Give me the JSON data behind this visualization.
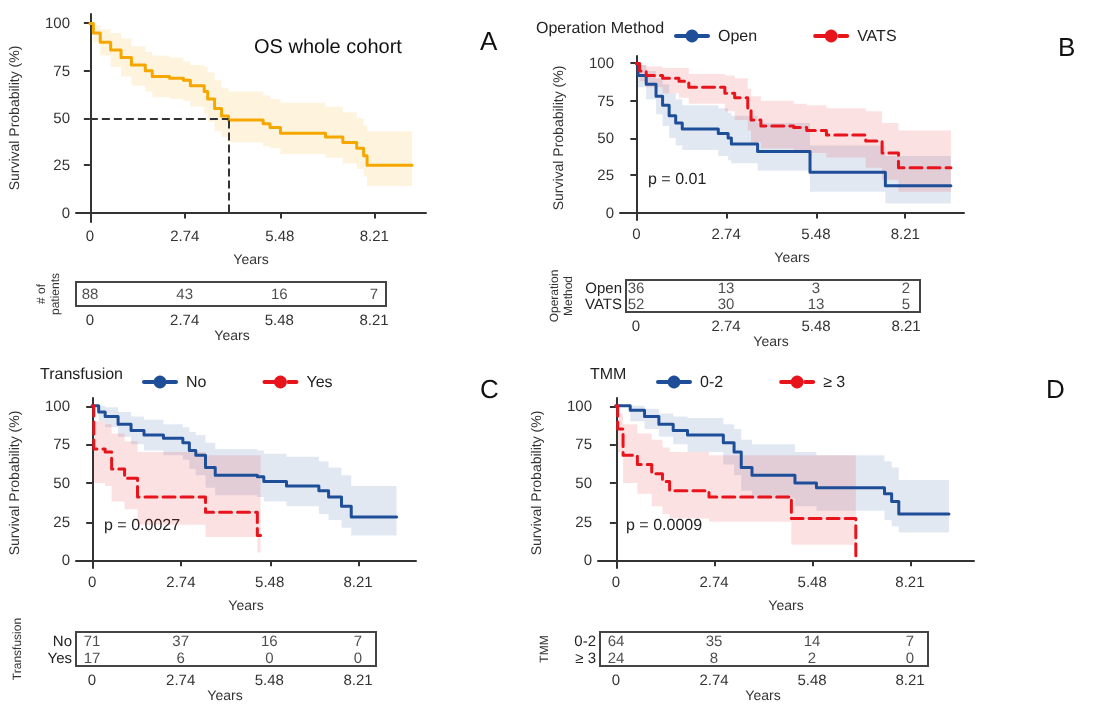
{
  "chart_data": [
    {
      "type": "step",
      "title": "OS whole cohort",
      "xlabel": "Years",
      "ylabel": "Survival Probability (%)",
      "annotations": [
        "A"
      ],
      "xlim": [
        -0.4,
        9.7
      ],
      "ylim": [
        -5,
        105
      ],
      "xticks": [
        0,
        2.74,
        5.48,
        8.21
      ],
      "yticks": [
        0,
        25,
        50,
        75,
        100
      ],
      "series": [
        {
          "color": "#f5a700",
          "x": [
            0,
            0.1,
            0.3,
            0.6,
            0.9,
            1.2,
            1.6,
            1.8,
            2.3,
            2.7,
            2.9,
            3.3,
            3.4,
            3.6,
            3.8,
            4.0,
            5.0,
            5.2,
            5.5,
            6.8,
            7.3,
            7.7,
            7.9,
            8.0,
            9.3
          ],
          "values": [
            100,
            95,
            90,
            86,
            82,
            78,
            75,
            72,
            71,
            70,
            67,
            64,
            60,
            55,
            51,
            49,
            47,
            45,
            42,
            40,
            37,
            34,
            30,
            25,
            25
          ],
          "upper": [
            100,
            99,
            97,
            95,
            92,
            88,
            85,
            83,
            82,
            80,
            78,
            77,
            74,
            70,
            66,
            64,
            62,
            60,
            58,
            56,
            53,
            50,
            46,
            43,
            43
          ],
          "lower": [
            100,
            90,
            83,
            77,
            72,
            67,
            64,
            61,
            60,
            59,
            56,
            52,
            48,
            43,
            40,
            37,
            35,
            34,
            31,
            29,
            26,
            23,
            19,
            14,
            14
          ]
        }
      ],
      "ref_lines": [
        {
          "axis": "y",
          "value": 50,
          "line_style": "dashed"
        },
        {
          "axis": "x",
          "value": 4.0,
          "line_style": "dashed"
        }
      ]
    },
    {
      "type": "heatmap",
      "xlabel": "Years",
      "categories": [
        "0",
        "2.74",
        "5.48",
        "8.21"
      ],
      "y_categories": [
        "# of patients"
      ],
      "data_labels": true,
      "cells": [
        [
          88,
          43,
          16,
          7
        ]
      ]
    },
    {
      "type": "step",
      "xlabel": "Years",
      "ylabel": "Survival Probability (%)",
      "legend_title": "Operation Method",
      "legend": "top",
      "annotations": [
        "B",
        "p = 0.01"
      ],
      "xlim": [
        -0.5,
        10
      ],
      "ylim": [
        -5,
        105
      ],
      "xticks": [
        0,
        2.74,
        5.48,
        8.21
      ],
      "yticks": [
        0,
        25,
        50,
        75,
        100
      ],
      "series": [
        {
          "name": "Open",
          "color": "#1f4e99",
          "line_style": "solid",
          "x": [
            0,
            0.05,
            0.3,
            0.6,
            0.8,
            1.0,
            1.2,
            1.4,
            2.5,
            2.8,
            2.9,
            3.7,
            5.3,
            7.6,
            9.6
          ],
          "values": [
            100,
            92,
            86,
            78,
            72,
            65,
            60,
            56,
            53,
            50,
            46,
            41,
            27,
            18,
            18
          ],
          "upper": [
            100,
            99,
            95,
            90,
            86,
            80,
            76,
            72,
            70,
            67,
            65,
            60,
            45,
            38,
            38
          ],
          "lower": [
            100,
            84,
            76,
            66,
            58,
            50,
            45,
            42,
            38,
            35,
            33,
            28,
            14,
            6,
            6
          ]
        },
        {
          "name": "VATS",
          "color": "#e8141c",
          "line_style": "dashed",
          "x": [
            0,
            0.1,
            0.3,
            0.8,
            1.3,
            1.6,
            2.7,
            3.0,
            3.4,
            3.5,
            3.8,
            4.8,
            5.2,
            5.8,
            7.0,
            7.5,
            8.0,
            9.6
          ],
          "values": [
            100,
            95,
            92,
            90,
            88,
            84,
            80,
            77,
            70,
            62,
            58,
            57,
            55,
            52,
            48,
            40,
            30,
            30
          ],
          "upper": [
            100,
            99,
            98,
            97,
            97,
            93,
            92,
            90,
            83,
            78,
            75,
            73,
            72,
            70,
            68,
            60,
            55,
            55
          ],
          "lower": [
            100,
            88,
            84,
            80,
            77,
            73,
            68,
            62,
            55,
            47,
            43,
            42,
            40,
            37,
            30,
            22,
            14,
            14
          ]
        }
      ]
    },
    {
      "type": "heatmap",
      "xlabel": "Years",
      "ylabel": "Operation Method",
      "categories": [
        "0",
        "2.74",
        "5.48",
        "8.21"
      ],
      "y_categories": [
        "Open",
        "VATS"
      ],
      "data_labels": true,
      "cells": [
        [
          36,
          13,
          3,
          2
        ],
        [
          52,
          30,
          13,
          5
        ]
      ]
    },
    {
      "type": "step",
      "xlabel": "Years",
      "ylabel": "Survival Probability (%)",
      "legend_title": "Transfusion",
      "legend": "top",
      "annotations": [
        "C",
        "p = 0.0027"
      ],
      "xlim": [
        -0.5,
        10
      ],
      "ylim": [
        -5,
        105
      ],
      "xticks": [
        0,
        2.74,
        5.48,
        8.21
      ],
      "yticks": [
        0,
        25,
        50,
        75,
        100
      ],
      "series": [
        {
          "name": "No",
          "color": "#1f4e99",
          "line_style": "solid",
          "x": [
            0,
            0.2,
            0.4,
            0.8,
            1.2,
            1.6,
            2.2,
            2.8,
            3.0,
            3.2,
            3.5,
            3.8,
            5.1,
            5.3,
            6.0,
            7.0,
            7.3,
            7.7,
            8.0,
            9.4
          ],
          "values": [
            100,
            96,
            93,
            88,
            84,
            81,
            79,
            76,
            71,
            68,
            60,
            55,
            54,
            51,
            48,
            45,
            41,
            35,
            28,
            28
          ],
          "upper": [
            100,
            100,
            99,
            96,
            93,
            91,
            88,
            86,
            83,
            81,
            76,
            72,
            71,
            69,
            67,
            64,
            60,
            55,
            48,
            48
          ],
          "lower": [
            100,
            90,
            86,
            80,
            75,
            71,
            68,
            65,
            59,
            55,
            47,
            42,
            41,
            38,
            35,
            30,
            26,
            21,
            16,
            16
          ]
        },
        {
          "name": "Yes",
          "color": "#e8141c",
          "line_style": "dashed",
          "x": [
            0,
            0.05,
            0.4,
            0.6,
            1.0,
            1.4,
            3.5,
            5.1,
            5.2
          ],
          "values": [
            100,
            72,
            70,
            59,
            53,
            41,
            31,
            16,
            16
          ],
          "upper": [
            100,
            90,
            88,
            82,
            77,
            70,
            68,
            68,
            68
          ],
          "lower": [
            100,
            50,
            48,
            38,
            33,
            23,
            15,
            5,
            5
          ]
        }
      ]
    },
    {
      "type": "heatmap",
      "xlabel": "Years",
      "ylabel": "Transfusion",
      "categories": [
        "0",
        "2.74",
        "5.48",
        "8.21"
      ],
      "y_categories": [
        "No",
        "Yes"
      ],
      "data_labels": true,
      "cells": [
        [
          71,
          37,
          16,
          7
        ],
        [
          17,
          6,
          0,
          0
        ]
      ]
    },
    {
      "type": "step",
      "xlabel": "Years",
      "ylabel": "Survival Probability (%)",
      "legend_title": "TMM",
      "legend": "top",
      "annotations": [
        "D",
        "p = 0.0009"
      ],
      "xlim": [
        -0.5,
        10
      ],
      "ylim": [
        -5,
        105
      ],
      "xticks": [
        0,
        2.74,
        5.48,
        8.21
      ],
      "yticks": [
        0,
        25,
        50,
        75,
        100
      ],
      "series": [
        {
          "name": "0-2",
          "color": "#1f4e99",
          "line_style": "solid",
          "x": [
            0,
            0.4,
            0.8,
            1.2,
            1.6,
            2.0,
            3.0,
            3.3,
            3.5,
            3.8,
            5.0,
            5.6,
            7.5,
            7.7,
            7.9,
            9.3
          ],
          "values": [
            100,
            97,
            93,
            88,
            84,
            81,
            76,
            70,
            60,
            55,
            50,
            47,
            43,
            38,
            30,
            30
          ],
          "upper": [
            100,
            100,
            98,
            95,
            93,
            92,
            88,
            85,
            78,
            75,
            70,
            68,
            64,
            60,
            52,
            52
          ],
          "lower": [
            100,
            90,
            85,
            80,
            75,
            70,
            62,
            55,
            45,
            40,
            35,
            32,
            26,
            22,
            18,
            18
          ]
        },
        {
          "name": "≥ 3",
          "color": "#e8141c",
          "line_style": "dashed",
          "x": [
            0,
            0.05,
            0.2,
            0.6,
            1.0,
            1.3,
            1.5,
            2.6,
            4.9,
            6.7
          ],
          "values": [
            100,
            85,
            68,
            62,
            56,
            51,
            45,
            41,
            27,
            0
          ],
          "upper": [
            100,
            95,
            88,
            82,
            78,
            73,
            70,
            68,
            68,
            68
          ],
          "lower": [
            100,
            70,
            50,
            43,
            35,
            30,
            27,
            25,
            10,
            10
          ]
        }
      ]
    },
    {
      "type": "heatmap",
      "xlabel": "Years",
      "ylabel": "TMM",
      "categories": [
        "0",
        "2.74",
        "5.48",
        "8.21"
      ],
      "y_categories": [
        "0-2",
        "≥ 3"
      ],
      "data_labels": true,
      "cells": [
        [
          64,
          35,
          14,
          7
        ],
        [
          24,
          8,
          2,
          0
        ]
      ]
    }
  ]
}
